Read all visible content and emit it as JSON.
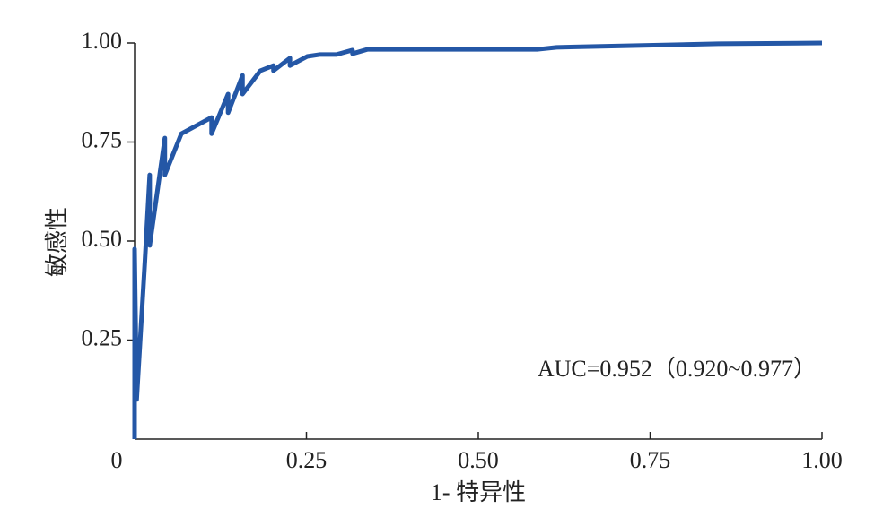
{
  "chart_data": {
    "type": "line",
    "xlabel": "1- 特异性",
    "ylabel": "敏感性",
    "annotation": "AUC=0.952（0.920~0.977）",
    "x": [
      0,
      0,
      0.003,
      0.015,
      0.022,
      0.022,
      0.044,
      0.044,
      0.068,
      0.112,
      0.112,
      0.136,
      0.136,
      0.157,
      0.157,
      0.183,
      0.202,
      0.202,
      0.226,
      0.226,
      0.251,
      0.27,
      0.294,
      0.317,
      0.317,
      0.339,
      0.587,
      0.614,
      0.849,
      1
    ],
    "values": [
      0,
      0.48,
      0.1,
      0.45,
      0.667,
      0.489,
      0.76,
      0.667,
      0.771,
      0.812,
      0.771,
      0.871,
      0.824,
      0.918,
      0.871,
      0.93,
      0.943,
      0.93,
      0.962,
      0.943,
      0.966,
      0.971,
      0.971,
      0.982,
      0.973,
      0.984,
      0.984,
      0.989,
      0.998,
      1
    ],
    "color": "#2457a6",
    "xlim": [
      0,
      1
    ],
    "ylim": [
      0,
      1
    ],
    "xticks": [
      0,
      0.25,
      {
        "value": 0.5,
        "label": "0.50"
      },
      0.75,
      {
        "value": 1,
        "label": "1.00"
      }
    ],
    "yticks": [
      0.25,
      {
        "value": 0.5,
        "label": "0.50"
      },
      0.75,
      {
        "value": 1,
        "label": "1.00"
      }
    ]
  }
}
